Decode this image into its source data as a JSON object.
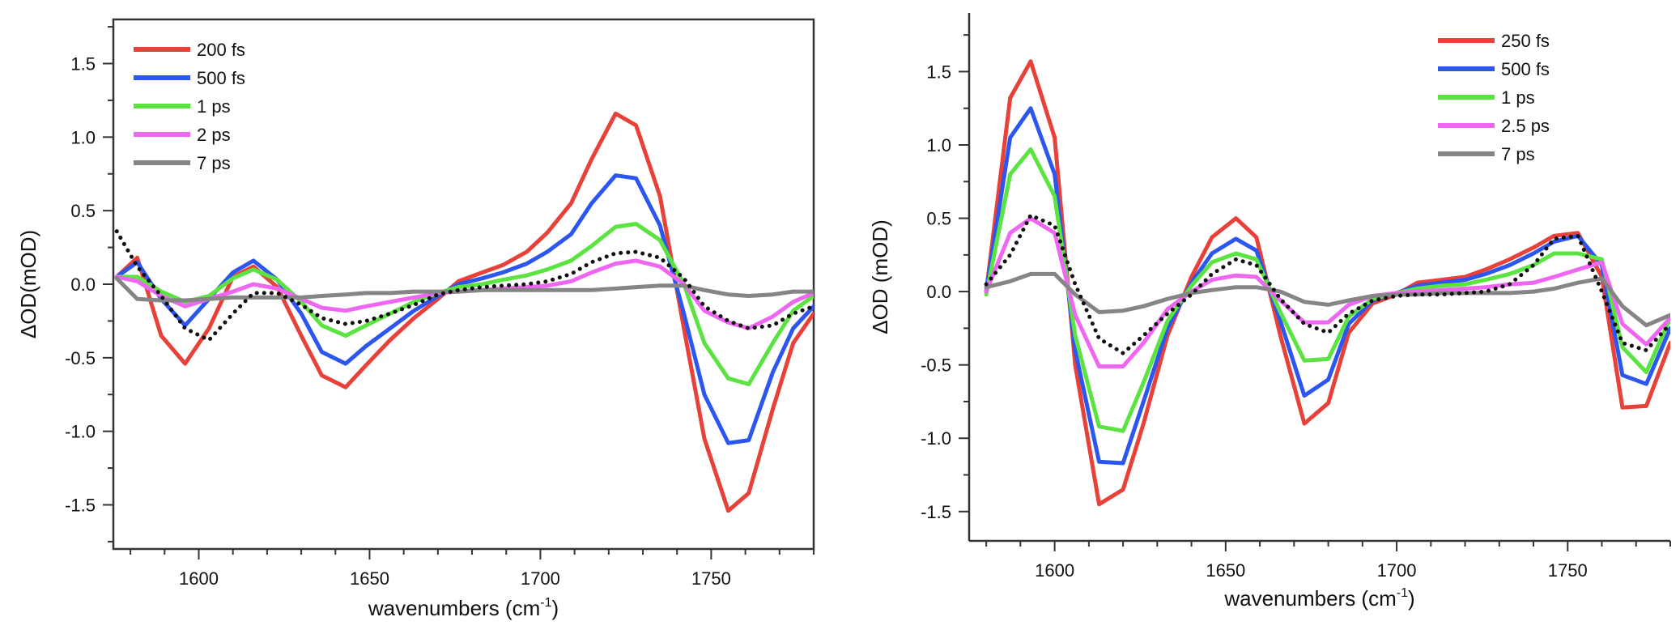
{
  "chart_data": [
    {
      "type": "line",
      "xlabel": "wavenumbers (cm",
      "xlabel_sup": "-1",
      "xlabel_end": ")",
      "ylabel": "ΔOD(mOD)",
      "xlim": [
        1575,
        1780
      ],
      "ylim": [
        -1.8,
        1.8
      ],
      "xticks": [
        1600,
        1650,
        1700,
        1750
      ],
      "xtick_labels": [
        "1600",
        "1650",
        "1700",
        "1750"
      ],
      "yticks": [
        -1.5,
        -1.0,
        -0.5,
        0.0,
        0.5,
        1.0,
        1.5
      ],
      "ytick_labels": [
        "-1.5",
        "-1.0",
        "-0.5",
        "0.0",
        "0.5",
        "1.0",
        "1.5"
      ],
      "legend_position": "top-left",
      "x": [
        1576,
        1582,
        1589,
        1596,
        1603,
        1610,
        1616,
        1623,
        1630,
        1636,
        1643,
        1649,
        1656,
        1663,
        1670,
        1676,
        1683,
        1689,
        1696,
        1702,
        1709,
        1715,
        1722,
        1728,
        1735,
        1742,
        1748,
        1755,
        1761,
        1768,
        1774,
        1780
      ],
      "series": [
        {
          "name": "200 fs",
          "color": "#e8413a",
          "values": [
            0.05,
            0.18,
            -0.35,
            -0.54,
            -0.3,
            0.05,
            0.12,
            -0.02,
            -0.35,
            -0.62,
            -0.7,
            -0.55,
            -0.38,
            -0.23,
            -0.1,
            0.02,
            0.08,
            0.13,
            0.22,
            0.35,
            0.55,
            0.85,
            1.16,
            1.08,
            0.6,
            -0.3,
            -1.05,
            -1.54,
            -1.42,
            -0.85,
            -0.4,
            -0.2
          ]
        },
        {
          "name": "500 fs",
          "color": "#2c56f0",
          "values": [
            0.05,
            0.15,
            -0.1,
            -0.28,
            -0.1,
            0.08,
            0.16,
            0.03,
            -0.2,
            -0.46,
            -0.54,
            -0.42,
            -0.3,
            -0.18,
            -0.08,
            0.0,
            0.04,
            0.08,
            0.14,
            0.22,
            0.34,
            0.55,
            0.74,
            0.72,
            0.4,
            -0.2,
            -0.75,
            -1.08,
            -1.06,
            -0.6,
            -0.3,
            -0.15
          ]
        },
        {
          "name": "1 ps",
          "color": "#5be341",
          "values": [
            0.05,
            0.05,
            -0.05,
            -0.12,
            -0.08,
            0.04,
            0.1,
            0.03,
            -0.12,
            -0.28,
            -0.35,
            -0.28,
            -0.2,
            -0.12,
            -0.06,
            -0.02,
            0.0,
            0.03,
            0.06,
            0.1,
            0.16,
            0.26,
            0.39,
            0.41,
            0.3,
            0.0,
            -0.4,
            -0.64,
            -0.68,
            -0.4,
            -0.18,
            -0.08
          ]
        },
        {
          "name": "2 ps",
          "color": "#ee66f2",
          "values": [
            0.05,
            0.02,
            -0.08,
            -0.15,
            -0.1,
            -0.05,
            0.0,
            -0.03,
            -0.1,
            -0.16,
            -0.18,
            -0.15,
            -0.12,
            -0.09,
            -0.06,
            -0.05,
            -0.04,
            -0.03,
            -0.02,
            -0.01,
            0.02,
            0.08,
            0.14,
            0.16,
            0.12,
            0.0,
            -0.18,
            -0.26,
            -0.3,
            -0.22,
            -0.12,
            -0.06
          ]
        },
        {
          "name": "7 ps",
          "color": "#858585",
          "values": [
            0.04,
            -0.1,
            -0.11,
            -0.11,
            -0.1,
            -0.09,
            -0.09,
            -0.09,
            -0.09,
            -0.08,
            -0.07,
            -0.06,
            -0.06,
            -0.05,
            -0.05,
            -0.05,
            -0.04,
            -0.04,
            -0.04,
            -0.04,
            -0.04,
            -0.04,
            -0.03,
            -0.02,
            -0.01,
            -0.01,
            -0.04,
            -0.07,
            -0.08,
            -0.07,
            -0.05,
            -0.05
          ]
        },
        {
          "name": "",
          "color": "#111111",
          "dashed": true,
          "values": [
            0.36,
            0.12,
            -0.08,
            -0.3,
            -0.38,
            -0.2,
            -0.06,
            -0.06,
            -0.14,
            -0.23,
            -0.27,
            -0.25,
            -0.2,
            -0.14,
            -0.07,
            -0.04,
            -0.02,
            -0.01,
            0.0,
            0.02,
            0.07,
            0.15,
            0.21,
            0.22,
            0.18,
            0.04,
            -0.15,
            -0.25,
            -0.3,
            -0.28,
            -0.2,
            -0.15
          ]
        }
      ]
    },
    {
      "type": "line",
      "xlabel": "wavenumbers (cm",
      "xlabel_sup": "-1",
      "xlabel_end": ")",
      "ylabel": "ΔOD (mOD)",
      "xlim": [
        1575,
        1780
      ],
      "ylim": [
        -1.7,
        1.9
      ],
      "xticks": [
        1600,
        1650,
        1700,
        1750
      ],
      "xtick_labels": [
        "1600",
        "1650",
        "1700",
        "1750"
      ],
      "yticks": [
        -1.5,
        -1.0,
        -0.5,
        0.0,
        0.5,
        1.0,
        1.5
      ],
      "ytick_labels": [
        "-1.5",
        "-1.0",
        "-0.5",
        "0.0",
        "0.5",
        "1.0",
        "1.5"
      ],
      "legend_position": "top-right",
      "x": [
        1580,
        1587,
        1593,
        1600,
        1606,
        1613,
        1620,
        1626,
        1633,
        1640,
        1646,
        1653,
        1659,
        1666,
        1673,
        1680,
        1686,
        1693,
        1700,
        1706,
        1713,
        1720,
        1726,
        1733,
        1740,
        1746,
        1753,
        1760,
        1766,
        1773,
        1780
      ],
      "series": [
        {
          "name": "250 fs",
          "color": "#e8413a",
          "values": [
            0.0,
            1.32,
            1.57,
            1.05,
            -0.5,
            -1.45,
            -1.35,
            -0.9,
            -0.3,
            0.1,
            0.37,
            0.5,
            0.37,
            -0.3,
            -0.9,
            -0.76,
            -0.28,
            -0.08,
            -0.02,
            0.06,
            0.08,
            0.1,
            0.15,
            0.22,
            0.3,
            0.38,
            0.4,
            0.1,
            -0.79,
            -0.78,
            -0.35
          ]
        },
        {
          "name": "500 fs",
          "color": "#2c56f0",
          "values": [
            0.0,
            1.05,
            1.25,
            0.8,
            -0.4,
            -1.16,
            -1.17,
            -0.75,
            -0.25,
            0.06,
            0.26,
            0.36,
            0.28,
            -0.2,
            -0.71,
            -0.6,
            -0.22,
            -0.06,
            -0.01,
            0.04,
            0.06,
            0.08,
            0.12,
            0.18,
            0.26,
            0.34,
            0.38,
            0.18,
            -0.57,
            -0.63,
            -0.25
          ]
        },
        {
          "name": "1 ps",
          "color": "#5be341",
          "values": [
            -0.02,
            0.8,
            0.97,
            0.65,
            -0.3,
            -0.92,
            -0.95,
            -0.62,
            -0.2,
            0.04,
            0.2,
            0.26,
            0.22,
            -0.14,
            -0.47,
            -0.46,
            -0.17,
            -0.05,
            -0.01,
            0.02,
            0.04,
            0.05,
            0.08,
            0.12,
            0.18,
            0.26,
            0.26,
            0.22,
            -0.38,
            -0.55,
            -0.18
          ]
        },
        {
          "name": "2.5 ps",
          "color": "#ee66f2",
          "values": [
            0.0,
            0.4,
            0.5,
            0.4,
            -0.16,
            -0.51,
            -0.51,
            -0.35,
            -0.12,
            0.0,
            0.08,
            0.11,
            0.1,
            -0.06,
            -0.21,
            -0.21,
            -0.09,
            -0.03,
            -0.01,
            0.0,
            0.01,
            0.02,
            0.03,
            0.05,
            0.06,
            0.1,
            0.15,
            0.2,
            -0.22,
            -0.36,
            -0.18
          ]
        },
        {
          "name": "7 ps",
          "color": "#858585",
          "values": [
            0.03,
            0.07,
            0.12,
            0.12,
            -0.02,
            -0.14,
            -0.13,
            -0.1,
            -0.05,
            -0.01,
            0.01,
            0.03,
            0.03,
            0.0,
            -0.07,
            -0.09,
            -0.06,
            -0.03,
            -0.02,
            -0.02,
            -0.01,
            -0.01,
            -0.01,
            -0.01,
            0.0,
            0.02,
            0.06,
            0.09,
            -0.1,
            -0.23,
            -0.16
          ]
        },
        {
          "name": "",
          "color": "#111111",
          "dashed": true,
          "values": [
            0.05,
            0.25,
            0.52,
            0.45,
            0.05,
            -0.32,
            -0.42,
            -0.3,
            -0.15,
            -0.02,
            0.12,
            0.22,
            0.18,
            -0.05,
            -0.22,
            -0.28,
            -0.15,
            -0.06,
            -0.03,
            -0.02,
            -0.02,
            -0.01,
            0.0,
            0.05,
            0.18,
            0.36,
            0.38,
            0.0,
            -0.35,
            -0.4,
            -0.22
          ]
        }
      ]
    }
  ]
}
